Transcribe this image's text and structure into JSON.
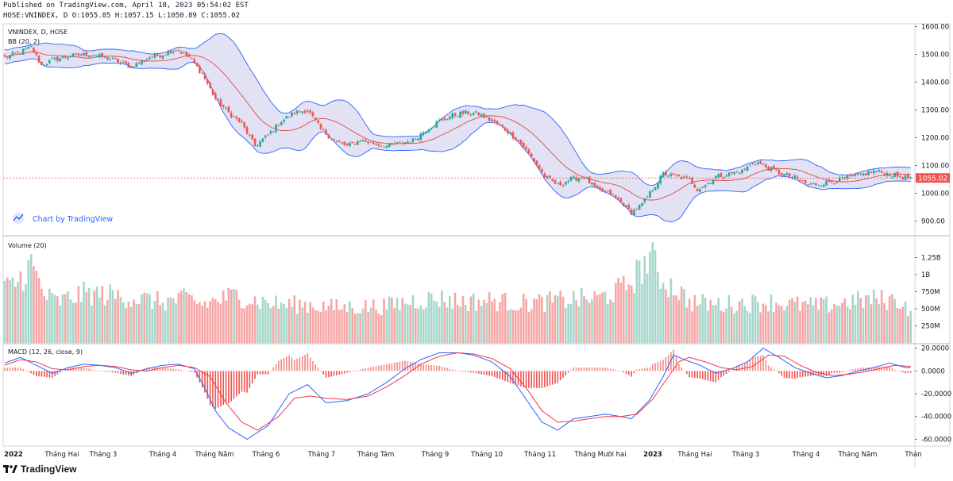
{
  "header": {
    "published": "Published on TradingView.com, April 18, 2023 05:54:02 EST",
    "ohlc": "HOSE:VNINDEX, D O:1055.85 H:1057.15 L:1050.89 C:1055.02"
  },
  "footer": {
    "brand": "TradingView"
  },
  "colors": {
    "up": "#26a69a",
    "down": "#ef5350",
    "up_vol": "#a5d6c9",
    "down_vol": "#f7a5a5",
    "bb_line": "#2962ff",
    "bb_fill": "#d8d8f0",
    "bb_mid": "#e04848",
    "macd": "#2962ff",
    "signal": "#f23645",
    "last_price": "#ef5350"
  },
  "chart_data": [
    {
      "type": "candlestick",
      "title": "VNINDEX, D, HOSE",
      "indicator_label": "BB (20, 2)",
      "watermark": "Chart by TradingView",
      "ylim": [
        850,
        1610
      ],
      "yticks": [
        "1600.00",
        "1500.00",
        "1400.00",
        "1300.00",
        "1200.00",
        "1100.00",
        "1000.00",
        "900.00"
      ],
      "last_price": 1055.02,
      "last_price_label": "1055.02",
      "x_months": [
        "2022",
        "Tháng Hai",
        "Tháng 3",
        "Tháng 4",
        "Tháng Năm",
        "Tháng 6",
        "Tháng 7",
        "Tháng Tám",
        "Tháng 9",
        "Tháng 10",
        "Tháng 11",
        "Tháng Mười hai",
        "2023",
        "Tháng Hai",
        "Tháng 3",
        "Tháng 4",
        "Tháng Năm",
        "Thán"
      ],
      "close_path": [
        [
          0,
          1490
        ],
        [
          5,
          1505
        ],
        [
          10,
          1525
        ],
        [
          14,
          1460
        ],
        [
          18,
          1480
        ],
        [
          25,
          1495
        ],
        [
          32,
          1500
        ],
        [
          40,
          1485
        ],
        [
          48,
          1455
        ],
        [
          55,
          1490
        ],
        [
          60,
          1500
        ],
        [
          65,
          1520
        ],
        [
          70,
          1490
        ],
        [
          75,
          1430
        ],
        [
          80,
          1340
        ],
        [
          85,
          1290
        ],
        [
          90,
          1250
        ],
        [
          95,
          1170
        ],
        [
          100,
          1210
        ],
        [
          105,
          1260
        ],
        [
          110,
          1290
        ],
        [
          115,
          1300
        ],
        [
          120,
          1230
        ],
        [
          125,
          1190
        ],
        [
          130,
          1170
        ],
        [
          135,
          1190
        ],
        [
          140,
          1180
        ],
        [
          145,
          1170
        ],
        [
          150,
          1180
        ],
        [
          155,
          1190
        ],
        [
          160,
          1230
        ],
        [
          165,
          1260
        ],
        [
          170,
          1280
        ],
        [
          175,
          1290
        ],
        [
          180,
          1285
        ],
        [
          185,
          1260
        ],
        [
          190,
          1230
        ],
        [
          195,
          1190
        ],
        [
          200,
          1130
        ],
        [
          205,
          1060
        ],
        [
          210,
          1030
        ],
        [
          215,
          1050
        ],
        [
          220,
          1060
        ],
        [
          225,
          1010
        ],
        [
          230,
          1000
        ],
        [
          235,
          960
        ],
        [
          238,
          930
        ],
        [
          242,
          960
        ],
        [
          245,
          1000
        ],
        [
          250,
          1070
        ],
        [
          255,
          1060
        ],
        [
          260,
          1050
        ],
        [
          263,
          1015
        ],
        [
          266,
          1030
        ],
        [
          270,
          1060
        ],
        [
          275,
          1070
        ],
        [
          280,
          1080
        ],
        [
          285,
          1115
        ],
        [
          290,
          1090
        ],
        [
          295,
          1070
        ],
        [
          300,
          1055
        ],
        [
          305,
          1030
        ],
        [
          310,
          1035
        ],
        [
          315,
          1045
        ],
        [
          320,
          1055
        ],
        [
          325,
          1065
        ],
        [
          330,
          1080
        ],
        [
          335,
          1070
        ],
        [
          340,
          1060
        ],
        [
          344,
          1055
        ]
      ]
    },
    {
      "type": "bar",
      "title": "Volume (20)",
      "ylim": [
        0,
        1500
      ],
      "yticks": [
        "1.25B",
        "1B",
        "750M",
        "500M",
        "250M"
      ],
      "volume_path": [
        [
          0,
          780
        ],
        [
          5,
          900
        ],
        [
          10,
          1150
        ],
        [
          15,
          700
        ],
        [
          20,
          600
        ],
        [
          30,
          720
        ],
        [
          40,
          700
        ],
        [
          50,
          650
        ],
        [
          60,
          600
        ],
        [
          70,
          650
        ],
        [
          75,
          560
        ],
        [
          80,
          620
        ],
        [
          88,
          700
        ],
        [
          95,
          620
        ],
        [
          105,
          560
        ],
        [
          115,
          560
        ],
        [
          125,
          520
        ],
        [
          135,
          530
        ],
        [
          145,
          540
        ],
        [
          155,
          620
        ],
        [
          165,
          650
        ],
        [
          175,
          600
        ],
        [
          185,
          620
        ],
        [
          195,
          580
        ],
        [
          205,
          600
        ],
        [
          215,
          640
        ],
        [
          225,
          650
        ],
        [
          235,
          800
        ],
        [
          240,
          1000
        ],
        [
          245,
          1270
        ],
        [
          250,
          900
        ],
        [
          255,
          800
        ],
        [
          260,
          600
        ],
        [
          270,
          560
        ],
        [
          280,
          580
        ],
        [
          290,
          600
        ],
        [
          300,
          560
        ],
        [
          310,
          540
        ],
        [
          320,
          600
        ],
        [
          330,
          640
        ],
        [
          340,
          620
        ],
        [
          344,
          480
        ]
      ]
    },
    {
      "type": "line",
      "title": "MACD (12, 26, close, 9)",
      "ylim": [
        -66,
        24
      ],
      "yticks": [
        "20.0000",
        "0.0000",
        "-20.0000",
        "-40.0000",
        "-60.0000"
      ],
      "macd_path": [
        [
          0,
          7
        ],
        [
          6,
          12
        ],
        [
          12,
          5
        ],
        [
          18,
          -2
        ],
        [
          24,
          3
        ],
        [
          30,
          6
        ],
        [
          36,
          5
        ],
        [
          42,
          3
        ],
        [
          48,
          -2
        ],
        [
          54,
          2
        ],
        [
          60,
          5
        ],
        [
          66,
          6
        ],
        [
          72,
          2
        ],
        [
          76,
          -15
        ],
        [
          80,
          -35
        ],
        [
          85,
          -50
        ],
        [
          92,
          -60
        ],
        [
          100,
          -48
        ],
        [
          108,
          -20
        ],
        [
          115,
          -12
        ],
        [
          122,
          -28
        ],
        [
          130,
          -26
        ],
        [
          138,
          -20
        ],
        [
          145,
          -10
        ],
        [
          152,
          2
        ],
        [
          158,
          10
        ],
        [
          165,
          16
        ],
        [
          172,
          16
        ],
        [
          178,
          14
        ],
        [
          185,
          8
        ],
        [
          192,
          -5
        ],
        [
          198,
          -25
        ],
        [
          204,
          -45
        ],
        [
          210,
          -52
        ],
        [
          216,
          -42
        ],
        [
          222,
          -40
        ],
        [
          228,
          -38
        ],
        [
          234,
          -40
        ],
        [
          238,
          -42
        ],
        [
          245,
          -25
        ],
        [
          250,
          -5
        ],
        [
          254,
          14
        ],
        [
          258,
          10
        ],
        [
          264,
          5
        ],
        [
          270,
          -2
        ],
        [
          276,
          2
        ],
        [
          282,
          8
        ],
        [
          288,
          20
        ],
        [
          294,
          12
        ],
        [
          300,
          3
        ],
        [
          306,
          -2
        ],
        [
          312,
          -6
        ],
        [
          318,
          -4
        ],
        [
          324,
          0
        ],
        [
          330,
          3
        ],
        [
          336,
          7
        ],
        [
          342,
          3
        ],
        [
          344,
          3
        ]
      ],
      "signal_path": [
        [
          0,
          5
        ],
        [
          6,
          10
        ],
        [
          12,
          8
        ],
        [
          18,
          2
        ],
        [
          24,
          1
        ],
        [
          30,
          4
        ],
        [
          36,
          5
        ],
        [
          42,
          4
        ],
        [
          48,
          1
        ],
        [
          54,
          0
        ],
        [
          60,
          3
        ],
        [
          66,
          5
        ],
        [
          72,
          3
        ],
        [
          78,
          -5
        ],
        [
          84,
          -28
        ],
        [
          90,
          -45
        ],
        [
          96,
          -52
        ],
        [
          104,
          -40
        ],
        [
          110,
          -24
        ],
        [
          116,
          -22
        ],
        [
          122,
          -24
        ],
        [
          130,
          -25
        ],
        [
          138,
          -22
        ],
        [
          145,
          -14
        ],
        [
          152,
          -4
        ],
        [
          158,
          6
        ],
        [
          165,
          13
        ],
        [
          172,
          16
        ],
        [
          178,
          15
        ],
        [
          185,
          11
        ],
        [
          192,
          2
        ],
        [
          198,
          -15
        ],
        [
          204,
          -35
        ],
        [
          210,
          -45
        ],
        [
          216,
          -44
        ],
        [
          222,
          -42
        ],
        [
          228,
          -40
        ],
        [
          234,
          -40
        ],
        [
          240,
          -38
        ],
        [
          246,
          -25
        ],
        [
          252,
          -5
        ],
        [
          256,
          8
        ],
        [
          260,
          12
        ],
        [
          266,
          8
        ],
        [
          272,
          3
        ],
        [
          278,
          1
        ],
        [
          284,
          4
        ],
        [
          290,
          14
        ],
        [
          296,
          13
        ],
        [
          302,
          5
        ],
        [
          308,
          -1
        ],
        [
          314,
          -4
        ],
        [
          320,
          -3
        ],
        [
          326,
          -1
        ],
        [
          332,
          2
        ],
        [
          338,
          5
        ],
        [
          344,
          4
        ]
      ]
    }
  ]
}
